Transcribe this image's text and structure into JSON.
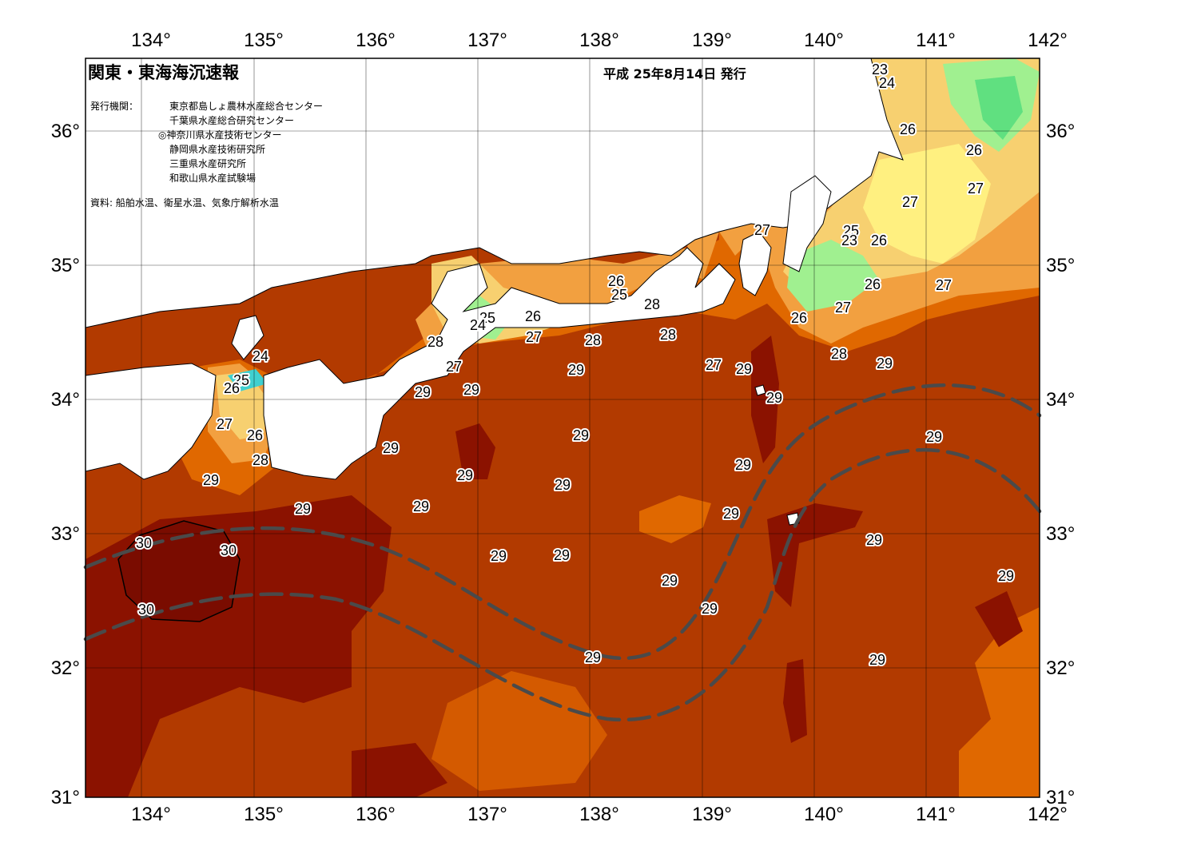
{
  "header": {
    "title": "関東・東海海沉速報",
    "date": "平成 25年8月14日 発行",
    "issuers_label": "発行機関：",
    "issuers": [
      "東京都島しょ農林水産総合センター",
      "千葉県水産総合研究センター",
      "◎神奈川県水産技術センター",
      "静岡県水産技術研究所",
      "三重県水産研究所",
      "和歌山県水産試験場"
    ],
    "source": "資料: 船舶水温、衛星水温、気象庁解析水温"
  },
  "axes": {
    "lon_labels": [
      "134°",
      "135°",
      "136°",
      "137°",
      "138°",
      "139°",
      "140°",
      "141°",
      "142°"
    ],
    "lat_labels": [
      "36°",
      "35°",
      "34°",
      "33°",
      "32°",
      "31°"
    ]
  },
  "isotherm_labels": [
    {
      "text": "23"
    },
    {
      "text": "24"
    },
    {
      "text": "26"
    },
    {
      "text": "26"
    },
    {
      "text": "27"
    },
    {
      "text": "27"
    },
    {
      "text": "26"
    },
    {
      "text": "25"
    },
    {
      "text": "23"
    },
    {
      "text": "27"
    },
    {
      "text": "27"
    },
    {
      "text": "26"
    },
    {
      "text": "26"
    },
    {
      "text": "27"
    },
    {
      "text": "26"
    },
    {
      "text": "25"
    },
    {
      "text": "28"
    },
    {
      "text": "26"
    },
    {
      "text": "25"
    },
    {
      "text": "24"
    },
    {
      "text": "27"
    },
    {
      "text": "28"
    },
    {
      "text": "28"
    },
    {
      "text": "28"
    },
    {
      "text": "28"
    },
    {
      "text": "24"
    },
    {
      "text": "25"
    },
    {
      "text": "26"
    },
    {
      "text": "27"
    },
    {
      "text": "26"
    },
    {
      "text": "28"
    },
    {
      "text": "27"
    },
    {
      "text": "29"
    },
    {
      "text": "29"
    },
    {
      "text": "29"
    },
    {
      "text": "27"
    },
    {
      "text": "29"
    },
    {
      "text": "29"
    },
    {
      "text": "29"
    },
    {
      "text": "29"
    },
    {
      "text": "29"
    },
    {
      "text": "29"
    },
    {
      "text": "29"
    },
    {
      "text": "29"
    },
    {
      "text": "29"
    },
    {
      "text": "29"
    },
    {
      "text": "29"
    },
    {
      "text": "30"
    },
    {
      "text": "30"
    },
    {
      "text": "30"
    },
    {
      "text": "29"
    },
    {
      "text": "29"
    },
    {
      "text": "29"
    },
    {
      "text": "29"
    },
    {
      "text": "29"
    },
    {
      "text": "29"
    },
    {
      "text": "29"
    },
    {
      "text": "29"
    },
    {
      "text": "29"
    },
    {
      "text": "29"
    }
  ],
  "colors": {
    "t30": "#8b1200",
    "t29": "#b23a00",
    "t28": "#e06800",
    "t27": "#f2a040",
    "t26": "#f7d070",
    "t25": "#fff080",
    "t24": "#a0f090",
    "t23": "#60e080",
    "t22": "#40d0d0",
    "land": "#ffffff",
    "current": "#4a4a4a"
  }
}
